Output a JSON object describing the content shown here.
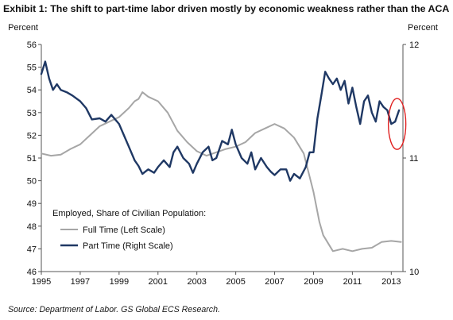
{
  "page": {
    "title": "Exhibit 1: The shift to part-time labor driven mostly by economic weakness rather than the ACA",
    "source": "Source: Department of Labor. GS Global ECS Research."
  },
  "chart_data": {
    "type": "line",
    "title": "Exhibit 1: The shift to part-time labor driven mostly by economic weakness rather than the ACA",
    "left_axis": {
      "label": "Percent",
      "ylim": [
        46,
        56
      ],
      "ticks": [
        46,
        47,
        48,
        49,
        50,
        51,
        52,
        53,
        54,
        55,
        56
      ]
    },
    "right_axis": {
      "label": "Percent",
      "ylim": [
        10,
        12
      ],
      "ticks": [
        10,
        11,
        12
      ]
    },
    "x_axis": {
      "xlim": [
        1995,
        2013.6
      ],
      "ticks": [
        "1995",
        "1997",
        "1999",
        "2001",
        "2003",
        "2005",
        "2007",
        "2009",
        "2011",
        "2013"
      ]
    },
    "grid": false,
    "legend": {
      "title": "Employed, Share of Civilian Population:",
      "placement": "bottom-left"
    },
    "series": [
      {
        "name": "Full Time (Left Scale)",
        "axis": "left",
        "color": "#a6a6a6",
        "points": [
          [
            1995.0,
            51.2
          ],
          [
            1995.5,
            51.1
          ],
          [
            1996.0,
            51.15
          ],
          [
            1996.5,
            51.4
          ],
          [
            1997.0,
            51.6
          ],
          [
            1997.5,
            52.0
          ],
          [
            1998.0,
            52.4
          ],
          [
            1998.5,
            52.6
          ],
          [
            1999.0,
            52.8
          ],
          [
            1999.5,
            53.2
          ],
          [
            1999.8,
            53.5
          ],
          [
            2000.0,
            53.6
          ],
          [
            2000.2,
            53.9
          ],
          [
            2000.5,
            53.7
          ],
          [
            2001.0,
            53.5
          ],
          [
            2001.5,
            53.0
          ],
          [
            2002.0,
            52.2
          ],
          [
            2002.5,
            51.7
          ],
          [
            2003.0,
            51.3
          ],
          [
            2003.5,
            51.1
          ],
          [
            2004.0,
            51.25
          ],
          [
            2004.5,
            51.4
          ],
          [
            2005.0,
            51.5
          ],
          [
            2005.5,
            51.7
          ],
          [
            2006.0,
            52.1
          ],
          [
            2006.5,
            52.3
          ],
          [
            2007.0,
            52.5
          ],
          [
            2007.5,
            52.3
          ],
          [
            2008.0,
            51.9
          ],
          [
            2008.5,
            51.2
          ],
          [
            2009.0,
            49.5
          ],
          [
            2009.3,
            48.2
          ],
          [
            2009.5,
            47.6
          ],
          [
            2010.0,
            46.9
          ],
          [
            2010.5,
            47.0
          ],
          [
            2011.0,
            46.9
          ],
          [
            2011.5,
            47.0
          ],
          [
            2012.0,
            47.05
          ],
          [
            2012.5,
            47.3
          ],
          [
            2013.0,
            47.35
          ],
          [
            2013.5,
            47.3
          ]
        ]
      },
      {
        "name": "Part Time (Right Scale)",
        "axis": "right",
        "color": "#1f3864",
        "points": [
          [
            1995.0,
            11.74
          ],
          [
            1995.2,
            11.85
          ],
          [
            1995.4,
            11.7
          ],
          [
            1995.6,
            11.6
          ],
          [
            1995.8,
            11.65
          ],
          [
            1996.0,
            11.6
          ],
          [
            1996.3,
            11.58
          ],
          [
            1996.6,
            11.55
          ],
          [
            1997.0,
            11.5
          ],
          [
            1997.3,
            11.44
          ],
          [
            1997.6,
            11.34
          ],
          [
            1998.0,
            11.35
          ],
          [
            1998.3,
            11.32
          ],
          [
            1998.6,
            11.38
          ],
          [
            1999.0,
            11.3
          ],
          [
            1999.2,
            11.22
          ],
          [
            1999.5,
            11.1
          ],
          [
            1999.8,
            10.98
          ],
          [
            2000.0,
            10.93
          ],
          [
            2000.2,
            10.86
          ],
          [
            2000.5,
            10.9
          ],
          [
            2000.8,
            10.87
          ],
          [
            2001.0,
            10.92
          ],
          [
            2001.3,
            10.98
          ],
          [
            2001.6,
            10.92
          ],
          [
            2001.8,
            11.05
          ],
          [
            2002.0,
            11.1
          ],
          [
            2002.3,
            11.0
          ],
          [
            2002.6,
            10.95
          ],
          [
            2002.8,
            10.87
          ],
          [
            2003.0,
            10.95
          ],
          [
            2003.3,
            11.05
          ],
          [
            2003.6,
            11.1
          ],
          [
            2003.8,
            10.98
          ],
          [
            2004.0,
            11.0
          ],
          [
            2004.3,
            11.15
          ],
          [
            2004.6,
            11.12
          ],
          [
            2004.8,
            11.25
          ],
          [
            2005.0,
            11.12
          ],
          [
            2005.3,
            11.0
          ],
          [
            2005.6,
            10.95
          ],
          [
            2005.8,
            11.05
          ],
          [
            2006.0,
            10.9
          ],
          [
            2006.3,
            11.0
          ],
          [
            2006.6,
            10.92
          ],
          [
            2006.8,
            10.88
          ],
          [
            2007.0,
            10.85
          ],
          [
            2007.3,
            10.9
          ],
          [
            2007.6,
            10.9
          ],
          [
            2007.8,
            10.8
          ],
          [
            2008.0,
            10.86
          ],
          [
            2008.3,
            10.82
          ],
          [
            2008.6,
            10.92
          ],
          [
            2008.8,
            11.05
          ],
          [
            2009.0,
            11.05
          ],
          [
            2009.2,
            11.35
          ],
          [
            2009.4,
            11.55
          ],
          [
            2009.6,
            11.76
          ],
          [
            2009.8,
            11.7
          ],
          [
            2010.0,
            11.65
          ],
          [
            2010.2,
            11.7
          ],
          [
            2010.4,
            11.6
          ],
          [
            2010.6,
            11.68
          ],
          [
            2010.8,
            11.48
          ],
          [
            2011.0,
            11.62
          ],
          [
            2011.2,
            11.45
          ],
          [
            2011.4,
            11.3
          ],
          [
            2011.6,
            11.5
          ],
          [
            2011.8,
            11.55
          ],
          [
            2012.0,
            11.4
          ],
          [
            2012.2,
            11.32
          ],
          [
            2012.4,
            11.5
          ],
          [
            2012.6,
            11.45
          ],
          [
            2012.8,
            11.42
          ],
          [
            2013.0,
            11.3
          ],
          [
            2013.2,
            11.32
          ],
          [
            2013.4,
            11.42
          ]
        ]
      }
    ],
    "annotation": {
      "shape": "ellipse",
      "color": "#e02020",
      "x": 2013.3,
      "y_right": 11.3
    }
  }
}
